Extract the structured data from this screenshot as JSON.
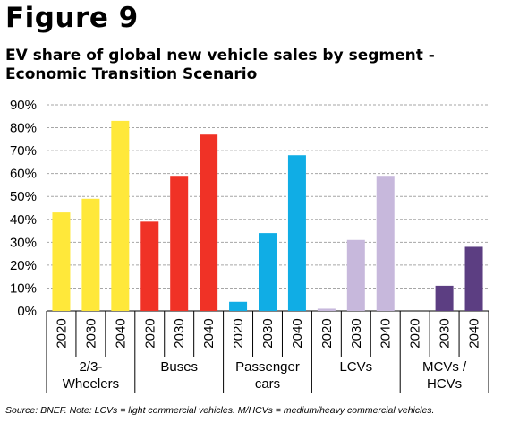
{
  "figure_label": "Figure 9",
  "chart_title_line1": "EV share of global new vehicle sales by segment -",
  "chart_title_line2": "Economic Transition Scenario",
  "source_note": "Source: BNEF. Note: LCVs = light commercial vehicles. M/HCVs = medium/heavy commercial vehicles.",
  "chart_data": {
    "type": "bar",
    "title": "EV share of global new vehicle sales by segment - Economic Transition Scenario",
    "ylim": [
      0,
      90
    ],
    "y_ticks": [
      "0%",
      "10%",
      "20%",
      "30%",
      "40%",
      "50%",
      "60%",
      "70%",
      "80%",
      "90%"
    ],
    "y_unit": "%",
    "grid": true,
    "years": [
      "2020",
      "2030",
      "2040"
    ],
    "groups": [
      {
        "label_lines": [
          "2/3-",
          "Wheelers"
        ],
        "color": "#FFE83A",
        "values": [
          43,
          49,
          83
        ]
      },
      {
        "label_lines": [
          "Buses"
        ],
        "color": "#F03226",
        "values": [
          39,
          59,
          77
        ]
      },
      {
        "label_lines": [
          "Passenger",
          "cars"
        ],
        "color": "#10ADE5",
        "values": [
          4,
          34,
          68
        ]
      },
      {
        "label_lines": [
          "LCVs"
        ],
        "color": "#C7B8DC",
        "values": [
          1,
          31,
          59
        ]
      },
      {
        "label_lines": [
          "MCVs /",
          "HCVs"
        ],
        "color": "#5C3E82",
        "values": [
          0,
          11,
          28
        ]
      }
    ]
  }
}
